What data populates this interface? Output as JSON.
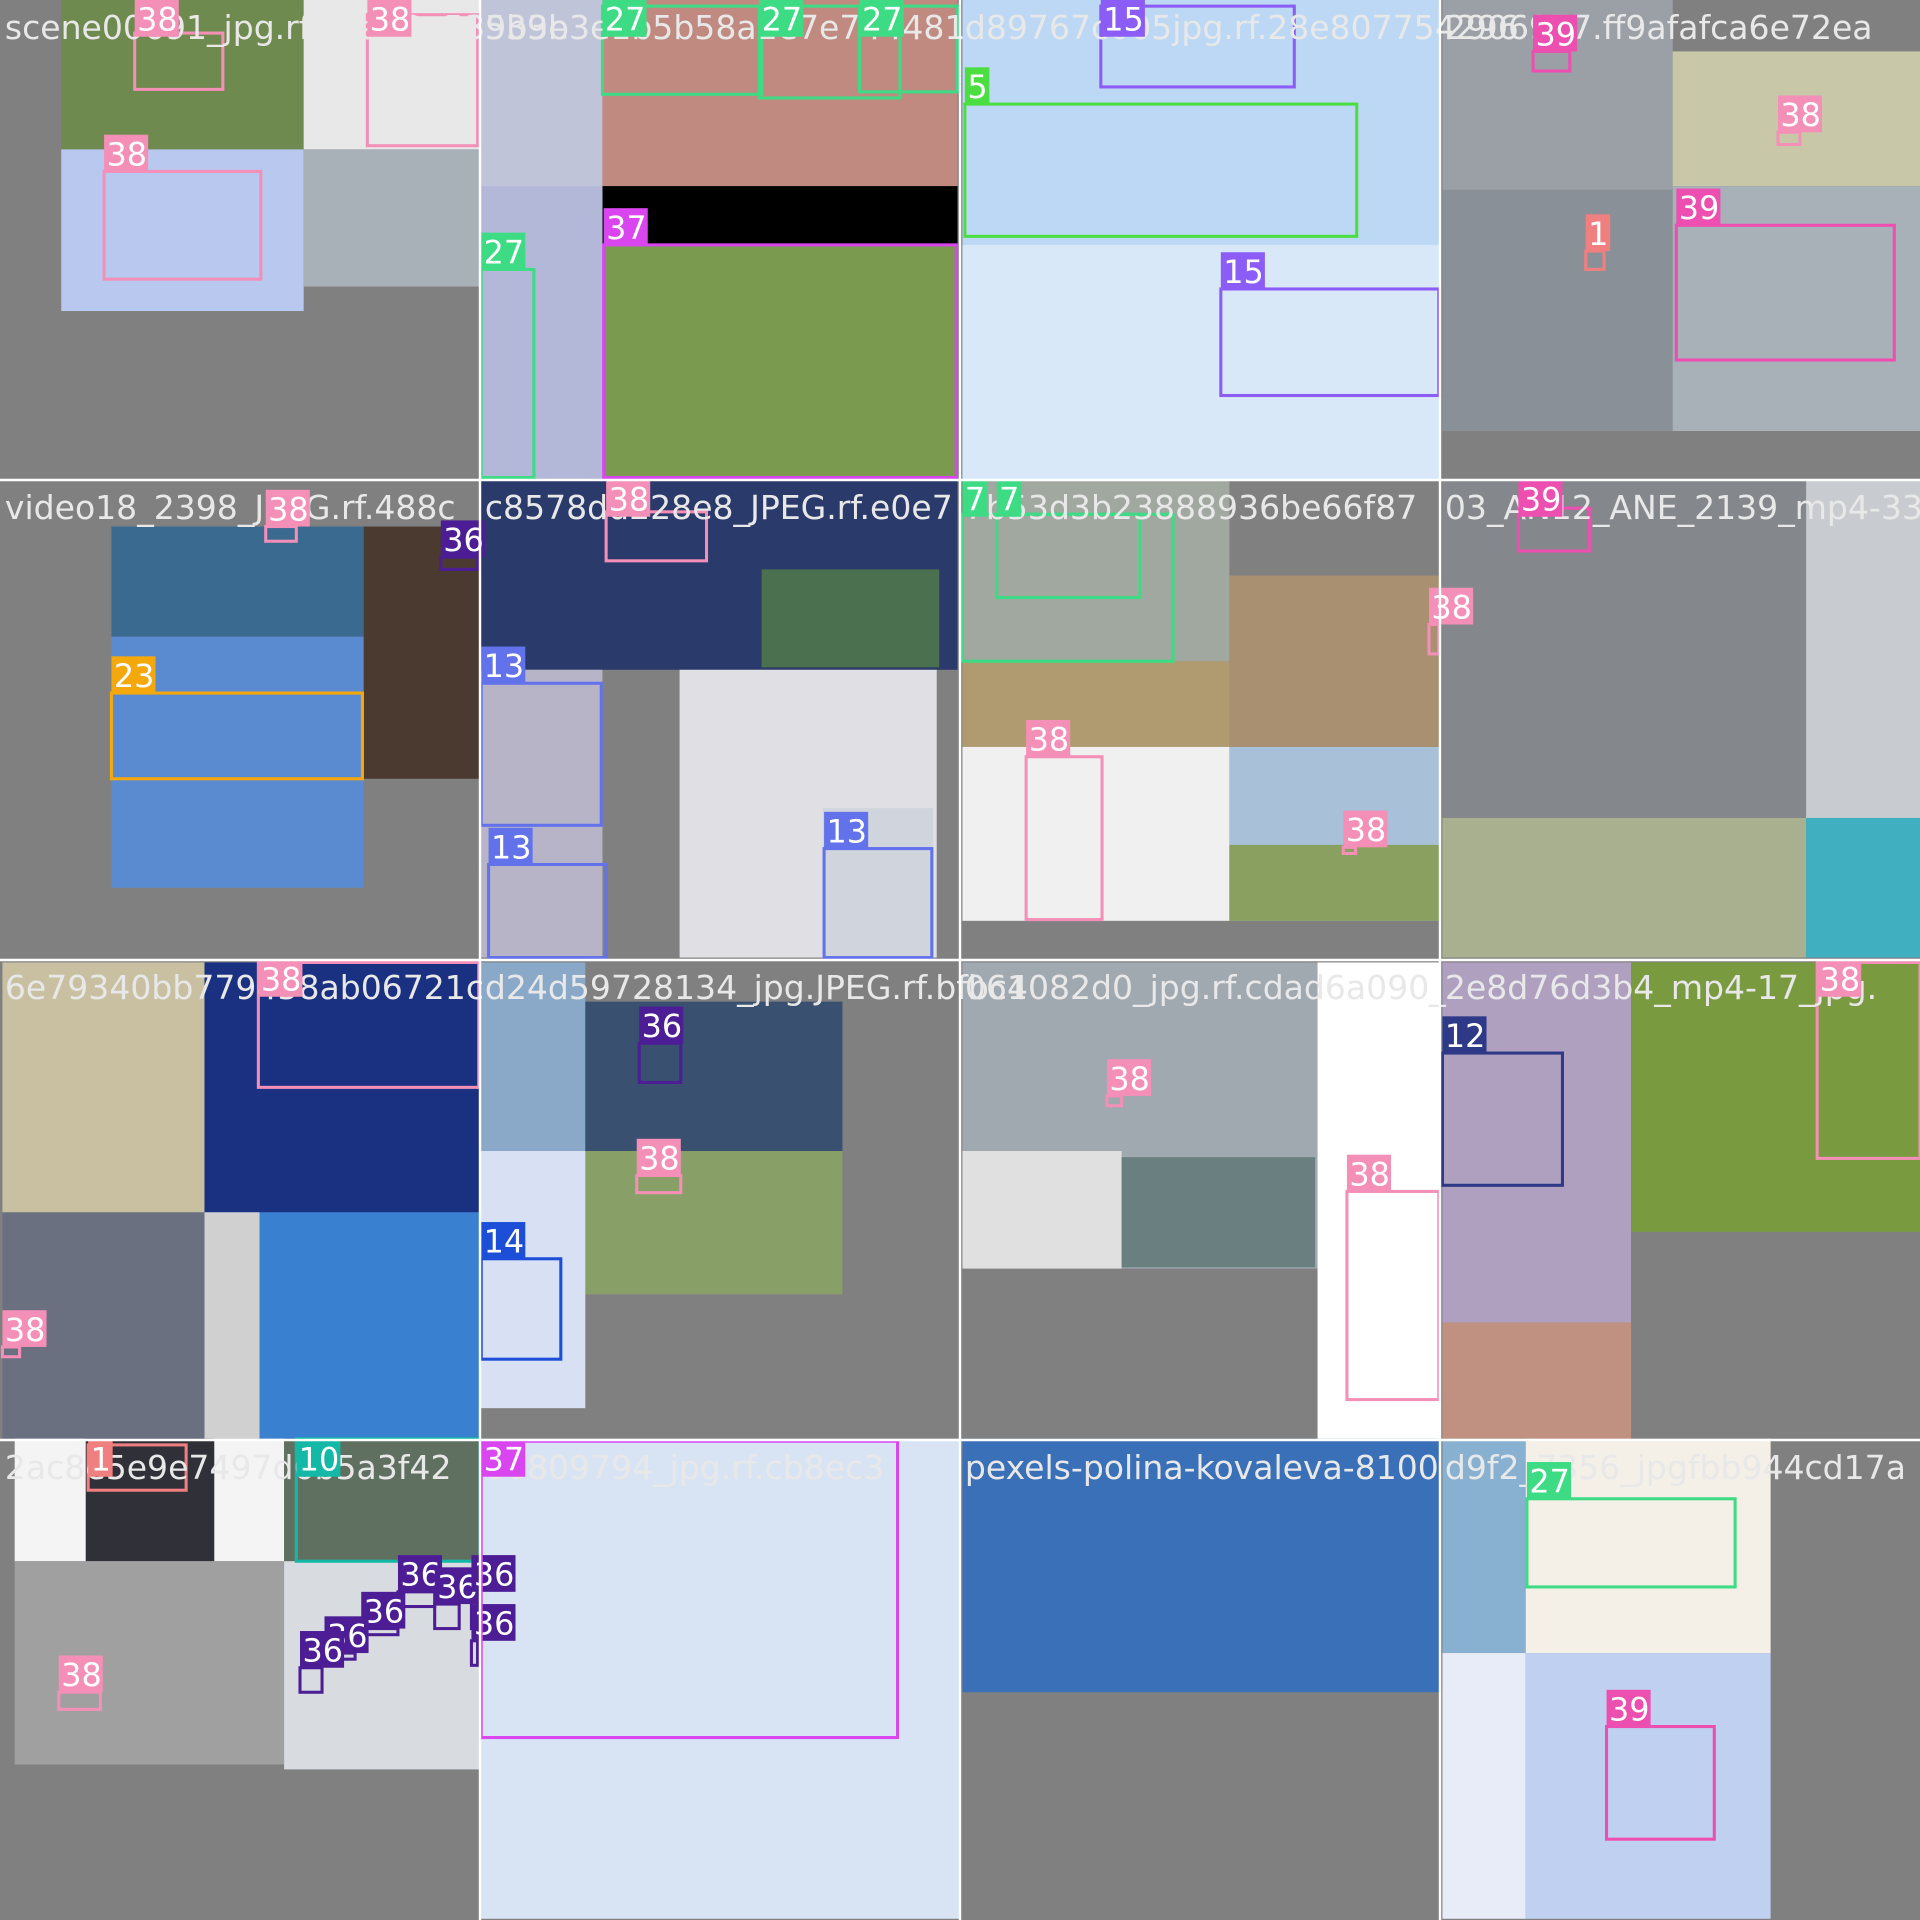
{
  "tiles": [
    {
      "filename": "scene00691_jpg.rf.97a22e539b3e",
      "boxes": [
        {
          "label": "38",
          "color": "#f48fb8"
        },
        {
          "label": "38",
          "color": "#f48fb8"
        },
        {
          "label": "38",
          "color": "#f48fb8"
        }
      ]
    },
    {
      "filename": "539b3e1b5b58a1e7e744481",
      "boxes": [
        {
          "label": "27",
          "color": "#3ddc84"
        },
        {
          "label": "27",
          "color": "#3ddc84"
        },
        {
          "label": "27",
          "color": "#3ddc84"
        },
        {
          "label": "27",
          "color": "#3ddc84"
        },
        {
          "label": "37",
          "color": "#d946ef"
        }
      ]
    },
    {
      "filename": "d89767c005jpg.rf.28e807754296",
      "boxes": [
        {
          "label": "15",
          "color": "#8b5cf6"
        },
        {
          "label": "5",
          "color": "#4ade40"
        },
        {
          "label": "15",
          "color": "#8b5cf6"
        }
      ]
    },
    {
      "filename": "2906977.ff9afafca6e72ea",
      "boxes": [
        {
          "label": "39",
          "color": "#ec4fb0"
        },
        {
          "label": "38",
          "color": "#f48fb8"
        },
        {
          "label": "1",
          "color": "#f08080"
        },
        {
          "label": "39",
          "color": "#ec4fb0"
        }
      ]
    },
    {
      "filename": "video18_2398_JPEG.rf.488c",
      "boxes": [
        {
          "label": "38",
          "color": "#f48fb8"
        },
        {
          "label": "36",
          "color": "#4c1d95"
        },
        {
          "label": "23",
          "color": "#f5a80b"
        }
      ]
    },
    {
      "filename": "c8578dd228e8_JPEG.rf.e0e7",
      "boxes": [
        {
          "label": "38",
          "color": "#f48fb8"
        },
        {
          "label": "13",
          "color": "#6272ea"
        },
        {
          "label": "13",
          "color": "#6272ea"
        },
        {
          "label": "13",
          "color": "#6272ea"
        }
      ]
    },
    {
      "filename": "7b53d3b23888936be66f87",
      "boxes": [
        {
          "label": "7",
          "color": "#3ddc84"
        },
        {
          "label": "7",
          "color": "#3ddc84"
        },
        {
          "label": "38",
          "color": "#f48fb8"
        },
        {
          "label": "38",
          "color": "#f48fb8"
        },
        {
          "label": "38",
          "color": "#f48fb8"
        }
      ]
    },
    {
      "filename": "03_AN12_ANE_2139_mp4-33_",
      "boxes": [
        {
          "label": "39",
          "color": "#ec4fb0"
        }
      ]
    },
    {
      "filename": "6e79340bb779458ab06721c",
      "boxes": [
        {
          "label": "38",
          "color": "#f48fb8"
        },
        {
          "label": "38",
          "color": "#f48fb8"
        }
      ]
    },
    {
      "filename": "d24d59728134_jpg.JPEG.rf.bfbc4",
      "boxes": [
        {
          "label": "36",
          "color": "#4c1d95"
        },
        {
          "label": "38",
          "color": "#f48fb8"
        },
        {
          "label": "14",
          "color": "#1d4ed8"
        }
      ]
    },
    {
      "filename": "061082d0_jpg.rf.cdad6a090_",
      "boxes": [
        {
          "label": "38",
          "color": "#f48fb8"
        },
        {
          "label": "38",
          "color": "#f48fb8"
        }
      ]
    },
    {
      "filename": "2e8d76d3b4_mp4-17_jpg.",
      "boxes": [
        {
          "label": "12",
          "color": "#2e3a87"
        },
        {
          "label": "38",
          "color": "#f48fb8"
        }
      ]
    },
    {
      "filename": "2ac8e5e9e7497d6b5a3f42",
      "boxes": [
        {
          "label": "1",
          "color": "#f08080"
        },
        {
          "label": "10",
          "color": "#14b8a6"
        },
        {
          "label": "38",
          "color": "#f48fb8"
        },
        {
          "label": "36",
          "color": "#4c1d95"
        },
        {
          "label": "36",
          "color": "#4c1d95"
        },
        {
          "label": "36",
          "color": "#4c1d95"
        },
        {
          "label": "36",
          "color": "#4c1d95"
        },
        {
          "label": "36",
          "color": "#4c1d95"
        },
        {
          "label": "36",
          "color": "#4c1d95"
        },
        {
          "label": "36",
          "color": "#4c1d95"
        }
      ]
    },
    {
      "filename": "00809794_jpg.rf.cb8ec3",
      "boxes": [
        {
          "label": "37",
          "color": "#d946ef"
        }
      ]
    },
    {
      "filename": "pexels-polina-kovaleva-8100",
      "boxes": []
    },
    {
      "filename": "d9f2_7356_jpgfbb944cd17a",
      "boxes": [
        {
          "label": "27",
          "color": "#3ddc84"
        },
        {
          "label": "39",
          "color": "#ec4fb0"
        }
      ]
    }
  ]
}
